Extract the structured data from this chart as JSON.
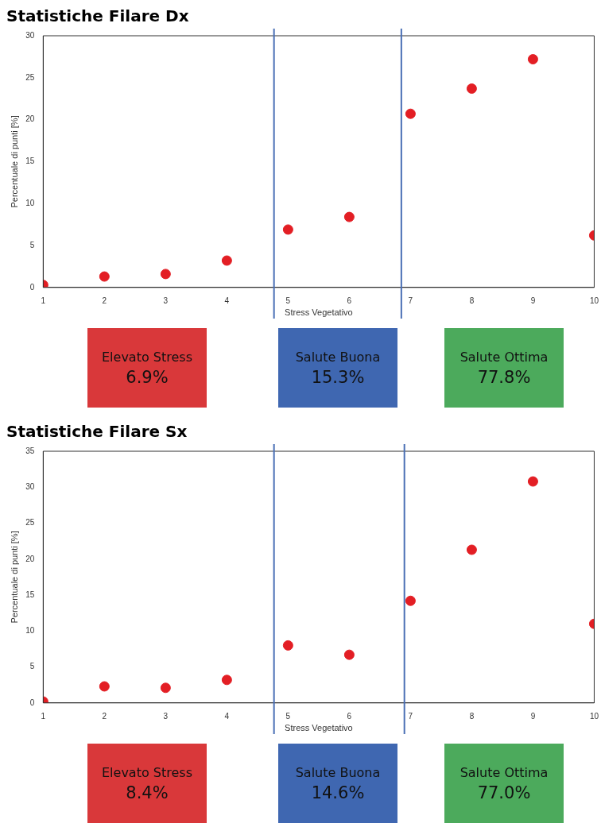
{
  "chart_data": [
    {
      "type": "scatter",
      "title": "Statistiche Filare Dx",
      "xlabel": "Stress Vegetativo",
      "ylabel": "Percentuale di punti [%]",
      "x": [
        1,
        2,
        3,
        4,
        5,
        6,
        7,
        8,
        9,
        10
      ],
      "series": [
        {
          "color": "#e31e24",
          "values": [
            0.3,
            1.3,
            1.6,
            3.2,
            6.9,
            8.4,
            20.7,
            23.7,
            27.2,
            6.2
          ]
        }
      ],
      "xlim": [
        1,
        10
      ],
      "xticks": [
        1,
        2,
        3,
        4,
        5,
        6,
        7,
        8,
        9,
        10
      ],
      "ylim": [
        0,
        30
      ],
      "yticks": [
        0,
        5,
        10,
        15,
        20,
        25,
        30
      ],
      "grid": false,
      "legend": false,
      "marker": "circle",
      "ref_lines": [
        {
          "axis": "x",
          "value": 4.77,
          "color": "#4a6fb5"
        },
        {
          "axis": "x",
          "value": 6.85,
          "color": "#4a6fb5"
        }
      ],
      "annotations": [
        "Elevato Stress\n6.9%",
        "Salute Buona\n15.3%",
        "Salute Ottima\n77.8%"
      ]
    },
    {
      "type": "scatter",
      "title": "Statistiche Filare Sx",
      "xlabel": "Stress Vegetativo",
      "ylabel": "Percentuale di punti [%]",
      "x": [
        1,
        2,
        3,
        4,
        5,
        6,
        7,
        8,
        9,
        10
      ],
      "series": [
        {
          "color": "#e31e24",
          "values": [
            0.2,
            2.3,
            2.1,
            3.2,
            8.0,
            6.7,
            14.2,
            21.3,
            30.8,
            11.0
          ]
        }
      ],
      "xlim": [
        1,
        10
      ],
      "xticks": [
        1,
        2,
        3,
        4,
        5,
        6,
        7,
        8,
        9,
        10
      ],
      "ylim": [
        0,
        35
      ],
      "yticks": [
        0,
        5,
        10,
        15,
        20,
        25,
        30,
        35
      ],
      "grid": false,
      "legend": false,
      "marker": "circle",
      "ref_lines": [
        {
          "axis": "x",
          "value": 4.77,
          "color": "#4a6fb5"
        },
        {
          "axis": "x",
          "value": 6.9,
          "color": "#4a6fb5"
        }
      ],
      "annotations": [
        "Elevato Stress\n8.4%",
        "Salute Buona\n14.6%",
        "Salute Ottima\n77.0%"
      ]
    }
  ]
}
